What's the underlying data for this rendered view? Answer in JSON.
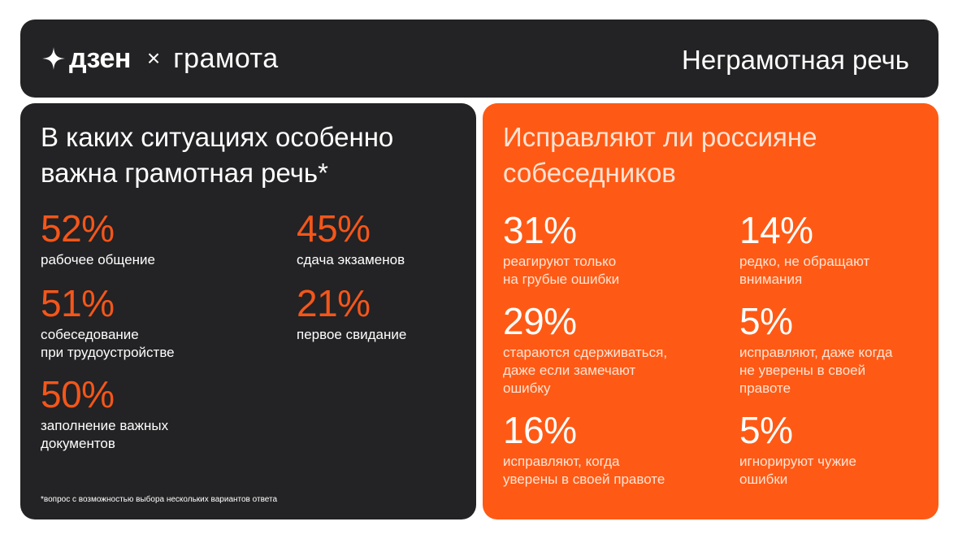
{
  "header": {
    "logo_dzen": "дзен",
    "logo_separator": "×",
    "logo_gramota": "грамота",
    "title": "Неграмотная речь"
  },
  "left_panel": {
    "title": "В каких ситуациях особенно важна грамотная речь*",
    "stats": [
      {
        "value": "52%",
        "label": "рабочее общение"
      },
      {
        "value": "45%",
        "label": "сдача экзаменов"
      },
      {
        "value": "51%",
        "label": "собеседование\nпри трудоустройстве"
      },
      {
        "value": "21%",
        "label": "первое свидание"
      },
      {
        "value": "50%",
        "label": "заполнение важных\nдокументов"
      }
    ],
    "footnote": "*вопрос с возможностью выбора нескольких вариантов ответа"
  },
  "right_panel": {
    "title": "Исправляют ли россияне собеседников",
    "stats": [
      {
        "value": "31%",
        "label": "реагируют только\nна грубые ошибки"
      },
      {
        "value": "14%",
        "label": "редко, не обращают\nвнимания"
      },
      {
        "value": "29%",
        "label": "стараются сдерживаться,\nдаже если замечают\nошибку"
      },
      {
        "value": "5%",
        "label": "исправляют, даже когда\nне уверены в своей\nправоте"
      },
      {
        "value": "16%",
        "label": "исправляют, когда\nуверены в своей правоте"
      },
      {
        "value": "5%",
        "label": "игнорируют чужие\nошибки"
      }
    ]
  },
  "colors": {
    "dark": "#232224",
    "accent": "#fe5a15",
    "accent_text": "#f4561a"
  },
  "icons": {
    "logo_star": "four-point-star-icon"
  }
}
